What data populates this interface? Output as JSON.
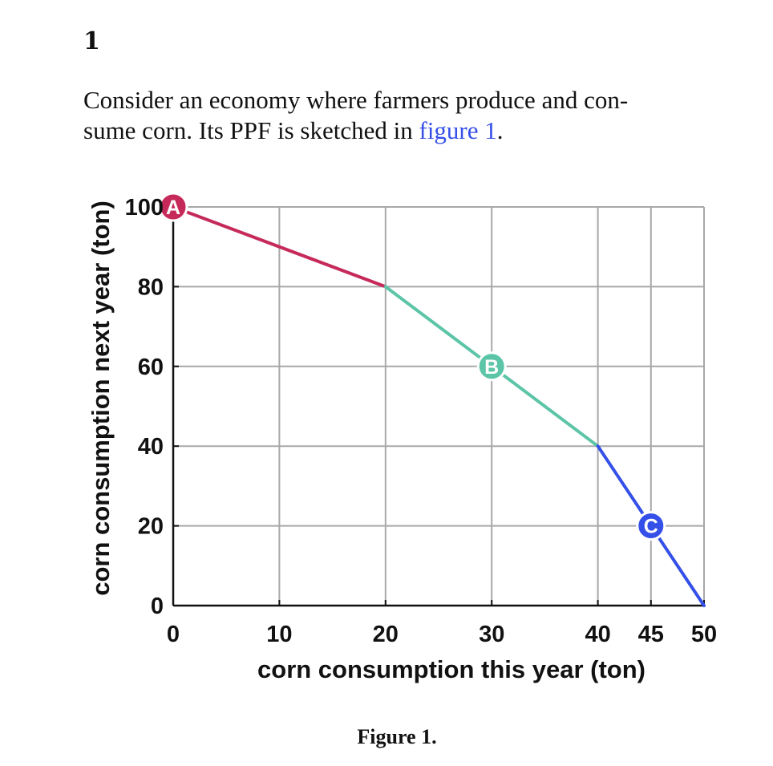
{
  "page": {
    "problem_number": "1",
    "intro_line1": "Consider an economy where farmers produce and con-",
    "intro_line2_prefix": "sume corn. Its PPF is sketched in ",
    "intro_link": "figure 1",
    "intro_line2_suffix": ".",
    "caption": "Figure 1."
  },
  "chart_data": {
    "type": "line",
    "title": "",
    "xlabel": "corn consumption this year (ton)",
    "ylabel": "corn consumption next year (ton)",
    "xlim": [
      0,
      50
    ],
    "ylim": [
      0,
      100
    ],
    "xticks": [
      0,
      10,
      20,
      30,
      40,
      45,
      50
    ],
    "yticks": [
      0,
      20,
      40,
      60,
      80,
      100
    ],
    "grid": true,
    "legend": "none",
    "series": [
      {
        "color": "#c62a5a",
        "x": [
          0,
          20
        ],
        "y": [
          100,
          80
        ]
      },
      {
        "color": "#5cc5a7",
        "x": [
          20,
          40
        ],
        "y": [
          80,
          40
        ]
      },
      {
        "color": "#3550e8",
        "x": [
          40,
          50
        ],
        "y": [
          40,
          0
        ]
      }
    ],
    "markers": [
      {
        "label": "A",
        "x": 0,
        "y": 100,
        "color": "#c62a5a"
      },
      {
        "label": "B",
        "x": 30,
        "y": 60,
        "color": "#5cc5a7"
      },
      {
        "label": "C",
        "x": 45,
        "y": 20,
        "color": "#3550e8"
      }
    ]
  }
}
